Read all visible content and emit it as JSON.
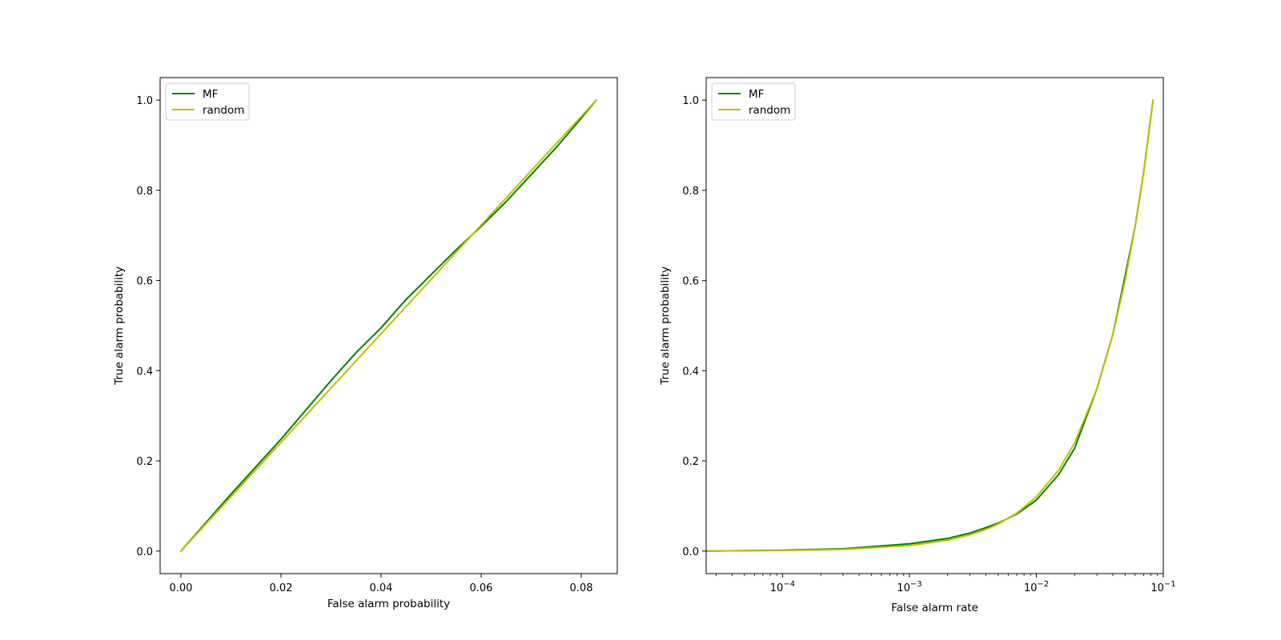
{
  "colors": {
    "MF": "#008000",
    "random": "#bfbf00"
  },
  "chart_data": [
    {
      "type": "line",
      "xlabel": "False alarm probability",
      "ylabel": "True alarm probability",
      "xscale": "linear",
      "xlim": [
        -0.00415,
        0.0872
      ],
      "ylim": [
        -0.05,
        1.05
      ],
      "xticks": [
        0.0,
        0.02,
        0.04,
        0.06,
        0.08
      ],
      "xtick_labels": [
        "0.00",
        "0.02",
        "0.04",
        "0.06",
        "0.08"
      ],
      "yticks": [
        0.0,
        0.2,
        0.4,
        0.6,
        0.8,
        1.0
      ],
      "ytick_labels": [
        "0.0",
        "0.2",
        "0.4",
        "0.6",
        "0.8",
        "1.0"
      ],
      "legend": {
        "position": "upper-left",
        "entries": [
          "MF",
          "random"
        ]
      },
      "series": [
        {
          "name": "MF",
          "color": "#008000",
          "x": [
            0.0,
            0.005,
            0.01,
            0.015,
            0.02,
            0.025,
            0.03,
            0.035,
            0.04,
            0.045,
            0.05,
            0.055,
            0.06,
            0.065,
            0.07,
            0.075,
            0.08,
            0.083
          ],
          "y": [
            0.0,
            0.063,
            0.126,
            0.187,
            0.248,
            0.313,
            0.378,
            0.44,
            0.495,
            0.558,
            0.613,
            0.668,
            0.72,
            0.775,
            0.835,
            0.895,
            0.96,
            1.0
          ]
        },
        {
          "name": "random",
          "color": "#bfbf00",
          "x": [
            0.0,
            0.083
          ],
          "y": [
            0.0,
            1.0
          ]
        }
      ]
    },
    {
      "type": "line",
      "xlabel": "False alarm rate",
      "ylabel": "True alarm probability",
      "xscale": "log",
      "xlim": [
        2.5e-05,
        0.1
      ],
      "ylim": [
        -0.05,
        1.05
      ],
      "xticks": [
        0.0001,
        0.001,
        0.01,
        0.1
      ],
      "xtick_labels": [
        "10",
        "10",
        "10",
        "10"
      ],
      "xtick_exponents": [
        "−4",
        "−3",
        "−2",
        "−1"
      ],
      "yticks": [
        0.0,
        0.2,
        0.4,
        0.6,
        0.8,
        1.0
      ],
      "ytick_labels": [
        "0.0",
        "0.2",
        "0.4",
        "0.6",
        "0.8",
        "1.0"
      ],
      "legend": {
        "position": "upper-left",
        "entries": [
          "MF",
          "random"
        ]
      },
      "series": [
        {
          "name": "MF",
          "color": "#008000",
          "x": [
            2.5e-05,
            0.0001,
            0.0003,
            0.001,
            0.002,
            0.003,
            0.004,
            0.005,
            0.007,
            0.01,
            0.015,
            0.02,
            0.03,
            0.04,
            0.05,
            0.06,
            0.07,
            0.083
          ],
          "y": [
            0.0,
            0.002,
            0.005,
            0.016,
            0.028,
            0.04,
            0.052,
            0.062,
            0.082,
            0.113,
            0.17,
            0.228,
            0.36,
            0.48,
            0.61,
            0.72,
            0.84,
            1.0
          ]
        },
        {
          "name": "random",
          "color": "#bfbf00",
          "x": [
            2.5e-05,
            0.0001,
            0.0003,
            0.001,
            0.002,
            0.003,
            0.004,
            0.005,
            0.007,
            0.01,
            0.015,
            0.02,
            0.03,
            0.04,
            0.05,
            0.06,
            0.07,
            0.083
          ],
          "y": [
            0.0003,
            0.0012,
            0.0036,
            0.012,
            0.024,
            0.036,
            0.048,
            0.06,
            0.084,
            0.12,
            0.18,
            0.24,
            0.36,
            0.48,
            0.6,
            0.72,
            0.84,
            1.0
          ]
        }
      ]
    }
  ]
}
